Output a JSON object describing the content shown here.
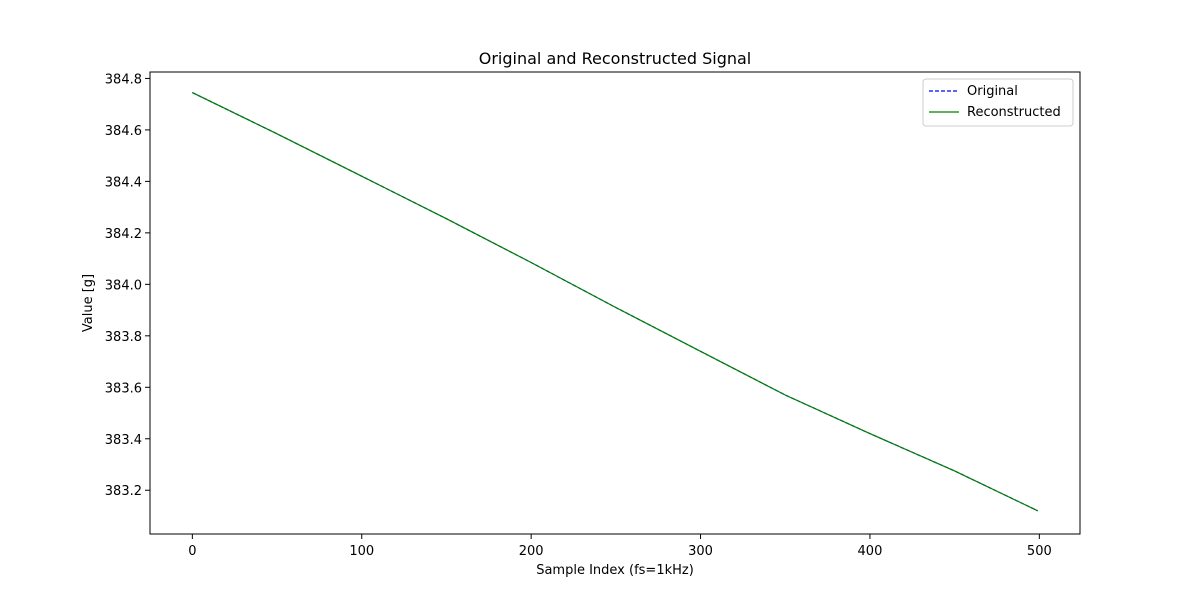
{
  "chart_data": {
    "type": "line",
    "title": "Original and Reconstructed Signal",
    "xlabel": "Sample Index (fs=1kHz)",
    "ylabel": "Value [g]",
    "xlim": [
      -25,
      524
    ],
    "ylim": [
      383.03,
      384.825
    ],
    "xticks": [
      0,
      100,
      200,
      300,
      400,
      500
    ],
    "xtick_labels": [
      "0",
      "100",
      "200",
      "300",
      "400",
      "500"
    ],
    "yticks": [
      383.2,
      383.4,
      383.6,
      383.8,
      384.0,
      384.2,
      384.4,
      384.6,
      384.8
    ],
    "ytick_labels": [
      "383.2",
      "383.4",
      "383.6",
      "383.8",
      "384.0",
      "384.2",
      "384.4",
      "384.6",
      "384.8"
    ],
    "grid": false,
    "legend_position": "top-right",
    "series": [
      {
        "name": "Original",
        "color": "#0000ff",
        "style": "dashed",
        "x": [
          0,
          50,
          100,
          150,
          200,
          250,
          300,
          350,
          400,
          450,
          499
        ],
        "values": [
          384.745,
          384.585,
          384.42,
          384.255,
          384.085,
          383.91,
          383.74,
          383.57,
          383.42,
          383.275,
          383.12
        ]
      },
      {
        "name": "Reconstructed",
        "color": "#008000",
        "style": "solid",
        "x": [
          0,
          50,
          100,
          150,
          200,
          250,
          300,
          350,
          400,
          450,
          499
        ],
        "values": [
          384.745,
          384.585,
          384.42,
          384.255,
          384.085,
          383.91,
          383.74,
          383.57,
          383.42,
          383.275,
          383.12
        ]
      }
    ]
  }
}
